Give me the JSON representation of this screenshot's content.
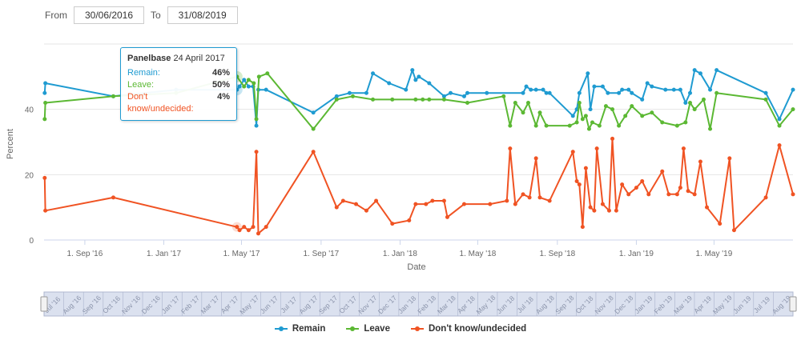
{
  "range_selector": {
    "from_label": "From",
    "from_value": "30/06/2016",
    "to_label": "To",
    "to_value": "31/08/2019"
  },
  "tooltip": {
    "pollster": "Panelbase",
    "date": "24 April 2017",
    "rows": [
      {
        "label": "Remain:",
        "value": "46%",
        "color": "#1f9bd1"
      },
      {
        "label": "Leave:",
        "value": "50%",
        "color": "#5bb833"
      },
      {
        "label": "Don't know/undecided:",
        "value": "4%",
        "color": "#f05323"
      }
    ]
  },
  "legend": [
    {
      "label": "Remain",
      "color": "#1f9bd1"
    },
    {
      "label": "Leave",
      "color": "#5bb833"
    },
    {
      "label": "Don't know/undecided",
      "color": "#f05323"
    }
  ],
  "chart_data": {
    "type": "line",
    "xlabel": "Date",
    "ylabel": "Percent",
    "ylim": [
      0,
      60
    ],
    "xlim": [
      "2016-06-30",
      "2019-08-31"
    ],
    "y_ticks": [
      0,
      20,
      40
    ],
    "x_ticks": [
      {
        "date": "2016-09-01",
        "label": "1. Sep '16"
      },
      {
        "date": "2017-01-01",
        "label": "1. Jan '17"
      },
      {
        "date": "2017-05-01",
        "label": "1. May '17"
      },
      {
        "date": "2017-09-01",
        "label": "1. Sep '17"
      },
      {
        "date": "2018-01-01",
        "label": "1. Jan '18"
      },
      {
        "date": "2018-05-01",
        "label": "1. May '18"
      },
      {
        "date": "2018-09-01",
        "label": "1. Sep '18"
      },
      {
        "date": "2019-01-01",
        "label": "1. Jan '19"
      },
      {
        "date": "2019-05-01",
        "label": "1. May '19"
      }
    ],
    "grid": "horizontal",
    "legend_position": "bottom",
    "navigator_months": [
      "Jul '16",
      "Aug '16",
      "Sep '16",
      "Oct '16",
      "Nov '16",
      "Dec '16",
      "Jan '17",
      "Feb '17",
      "Mar '17",
      "Apr '17",
      "May '17",
      "Jun '17",
      "Jul '17",
      "Aug '17",
      "Sep '17",
      "Oct '17",
      "Nov '17",
      "Dec '17",
      "Jan '18",
      "Feb '18",
      "Mar '18",
      "Apr '18",
      "May '18",
      "Jun '18",
      "Jul '18",
      "Aug '18",
      "Sep '18",
      "Oct '18",
      "Nov '18",
      "Dec '18",
      "Jan '19",
      "Feb '19",
      "Mar '19",
      "Apr '19",
      "May '19",
      "Jun '19",
      "Jul '19",
      "Aug '19"
    ],
    "series": [
      {
        "name": "Remain",
        "color": "#1f9bd1",
        "points": [
          [
            "2016-07-01",
            45
          ],
          [
            "2016-07-02",
            48
          ],
          [
            "2016-10-15",
            44
          ],
          [
            "2017-01-20",
            46
          ],
          [
            "2017-04-24",
            46
          ],
          [
            "2017-04-28",
            47
          ],
          [
            "2017-05-05",
            49
          ],
          [
            "2017-05-12",
            47
          ],
          [
            "2017-05-19",
            47
          ],
          [
            "2017-05-24",
            35
          ],
          [
            "2017-05-27",
            46
          ],
          [
            "2017-06-08",
            46
          ],
          [
            "2017-08-20",
            39
          ],
          [
            "2017-09-25",
            44
          ],
          [
            "2017-10-15",
            45
          ],
          [
            "2017-11-10",
            45
          ],
          [
            "2017-11-20",
            51
          ],
          [
            "2017-12-15",
            48
          ],
          [
            "2018-01-10",
            46
          ],
          [
            "2018-01-20",
            52
          ],
          [
            "2018-01-25",
            49
          ],
          [
            "2018-01-30",
            50
          ],
          [
            "2018-02-15",
            48
          ],
          [
            "2018-03-10",
            44
          ],
          [
            "2018-03-20",
            45
          ],
          [
            "2018-04-10",
            44
          ],
          [
            "2018-04-15",
            45
          ],
          [
            "2018-05-15",
            45
          ],
          [
            "2018-07-10",
            45
          ],
          [
            "2018-07-15",
            47
          ],
          [
            "2018-07-22",
            46
          ],
          [
            "2018-07-30",
            46
          ],
          [
            "2018-08-10",
            46
          ],
          [
            "2018-08-15",
            45
          ],
          [
            "2018-08-20",
            45
          ],
          [
            "2018-09-25",
            38
          ],
          [
            "2018-10-01",
            40
          ],
          [
            "2018-10-05",
            45
          ],
          [
            "2018-10-18",
            51
          ],
          [
            "2018-10-22",
            40
          ],
          [
            "2018-10-28",
            47
          ],
          [
            "2018-11-10",
            47
          ],
          [
            "2018-11-18",
            45
          ],
          [
            "2018-12-05",
            45
          ],
          [
            "2018-12-10",
            46
          ],
          [
            "2018-12-20",
            46
          ],
          [
            "2018-12-25",
            45
          ],
          [
            "2019-01-10",
            43
          ],
          [
            "2019-01-18",
            48
          ],
          [
            "2019-01-25",
            47
          ],
          [
            "2019-02-15",
            46
          ],
          [
            "2019-02-28",
            46
          ],
          [
            "2019-03-10",
            46
          ],
          [
            "2019-03-18",
            42
          ],
          [
            "2019-03-25",
            45
          ],
          [
            "2019-04-01",
            52
          ],
          [
            "2019-04-10",
            51
          ],
          [
            "2019-04-25",
            46
          ],
          [
            "2019-05-05",
            52
          ],
          [
            "2019-07-20",
            45
          ],
          [
            "2019-08-10",
            37
          ],
          [
            "2019-08-31",
            46
          ]
        ]
      },
      {
        "name": "Leave",
        "color": "#5bb833",
        "points": [
          [
            "2016-07-01",
            37
          ],
          [
            "2016-07-02",
            42
          ],
          [
            "2016-10-15",
            44
          ],
          [
            "2017-01-20",
            45
          ],
          [
            "2017-04-24",
            50
          ],
          [
            "2017-05-05",
            47
          ],
          [
            "2017-05-12",
            49
          ],
          [
            "2017-05-20",
            48
          ],
          [
            "2017-05-24",
            37
          ],
          [
            "2017-05-28",
            50
          ],
          [
            "2017-06-10",
            51
          ],
          [
            "2017-08-20",
            34
          ],
          [
            "2017-09-25",
            43
          ],
          [
            "2017-10-20",
            44
          ],
          [
            "2017-11-20",
            43
          ],
          [
            "2017-12-20",
            43
          ],
          [
            "2018-01-25",
            43
          ],
          [
            "2018-02-05",
            43
          ],
          [
            "2018-02-15",
            43
          ],
          [
            "2018-03-10",
            43
          ],
          [
            "2018-04-15",
            42
          ],
          [
            "2018-06-10",
            44
          ],
          [
            "2018-06-20",
            35
          ],
          [
            "2018-06-28",
            42
          ],
          [
            "2018-07-10",
            39
          ],
          [
            "2018-07-18",
            42
          ],
          [
            "2018-07-30",
            35
          ],
          [
            "2018-08-05",
            39
          ],
          [
            "2018-08-15",
            35
          ],
          [
            "2018-09-20",
            35
          ],
          [
            "2018-10-01",
            36
          ],
          [
            "2018-10-05",
            42
          ],
          [
            "2018-10-10",
            37
          ],
          [
            "2018-10-15",
            38
          ],
          [
            "2018-10-20",
            34
          ],
          [
            "2018-10-25",
            36
          ],
          [
            "2018-11-05",
            35
          ],
          [
            "2018-11-15",
            41
          ],
          [
            "2018-11-25",
            40
          ],
          [
            "2018-12-05",
            35
          ],
          [
            "2018-12-15",
            38
          ],
          [
            "2018-12-25",
            41
          ],
          [
            "2019-01-10",
            38
          ],
          [
            "2019-01-25",
            39
          ],
          [
            "2019-02-10",
            36
          ],
          [
            "2019-03-05",
            35
          ],
          [
            "2019-03-18",
            36
          ],
          [
            "2019-03-25",
            42
          ],
          [
            "2019-04-01",
            40
          ],
          [
            "2019-04-15",
            43
          ],
          [
            "2019-04-25",
            34
          ],
          [
            "2019-05-05",
            45
          ],
          [
            "2019-07-20",
            43
          ],
          [
            "2019-08-10",
            35
          ],
          [
            "2019-08-31",
            40
          ]
        ]
      },
      {
        "name": "Don't know/undecided",
        "color": "#f05323",
        "points": [
          [
            "2016-07-01",
            19
          ],
          [
            "2016-07-02",
            9
          ],
          [
            "2016-10-15",
            13
          ],
          [
            "2017-04-24",
            4
          ],
          [
            "2017-04-28",
            3
          ],
          [
            "2017-05-05",
            4
          ],
          [
            "2017-05-12",
            3
          ],
          [
            "2017-05-19",
            4
          ],
          [
            "2017-05-24",
            27
          ],
          [
            "2017-05-27",
            2
          ],
          [
            "2017-06-08",
            4
          ],
          [
            "2017-08-20",
            27
          ],
          [
            "2017-09-25",
            10
          ],
          [
            "2017-10-05",
            12
          ],
          [
            "2017-10-25",
            11
          ],
          [
            "2017-11-10",
            9
          ],
          [
            "2017-11-25",
            12
          ],
          [
            "2017-12-20",
            5
          ],
          [
            "2018-01-15",
            6
          ],
          [
            "2018-01-25",
            11
          ],
          [
            "2018-02-10",
            11
          ],
          [
            "2018-02-20",
            12
          ],
          [
            "2018-03-10",
            12
          ],
          [
            "2018-03-15",
            7
          ],
          [
            "2018-04-10",
            11
          ],
          [
            "2018-05-20",
            11
          ],
          [
            "2018-06-15",
            12
          ],
          [
            "2018-06-20",
            28
          ],
          [
            "2018-06-28",
            11
          ],
          [
            "2018-07-10",
            14
          ],
          [
            "2018-07-20",
            13
          ],
          [
            "2018-07-30",
            25
          ],
          [
            "2018-08-05",
            13
          ],
          [
            "2018-08-20",
            12
          ],
          [
            "2018-09-25",
            27
          ],
          [
            "2018-10-01",
            18
          ],
          [
            "2018-10-05",
            17
          ],
          [
            "2018-10-10",
            4
          ],
          [
            "2018-10-15",
            22
          ],
          [
            "2018-10-22",
            10
          ],
          [
            "2018-10-28",
            9
          ],
          [
            "2018-11-01",
            28
          ],
          [
            "2018-11-10",
            11
          ],
          [
            "2018-11-20",
            9
          ],
          [
            "2018-11-25",
            31
          ],
          [
            "2018-12-01",
            9
          ],
          [
            "2018-12-10",
            17
          ],
          [
            "2018-12-20",
            14
          ],
          [
            "2019-01-01",
            16
          ],
          [
            "2019-01-10",
            18
          ],
          [
            "2019-01-20",
            14
          ],
          [
            "2019-02-10",
            21
          ],
          [
            "2019-02-20",
            14
          ],
          [
            "2019-03-05",
            14
          ],
          [
            "2019-03-10",
            16
          ],
          [
            "2019-03-15",
            28
          ],
          [
            "2019-03-22",
            15
          ],
          [
            "2019-04-01",
            14
          ],
          [
            "2019-04-10",
            24
          ],
          [
            "2019-04-20",
            10
          ],
          [
            "2019-05-10",
            5
          ],
          [
            "2019-05-25",
            25
          ],
          [
            "2019-06-01",
            3
          ],
          [
            "2019-07-20",
            13
          ],
          [
            "2019-08-10",
            29
          ],
          [
            "2019-08-31",
            14
          ]
        ]
      }
    ]
  }
}
